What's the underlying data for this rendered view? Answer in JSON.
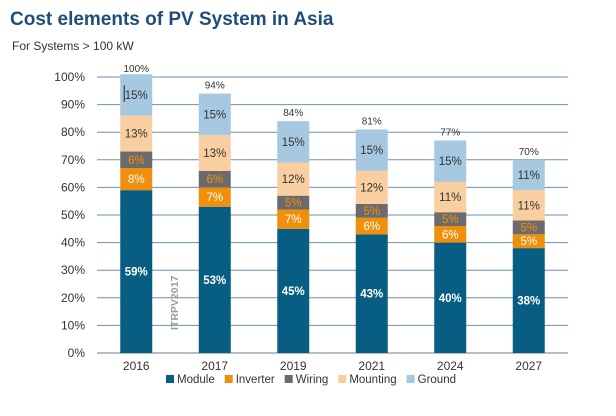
{
  "header": {
    "title": "Cost elements of PV System in Asia",
    "subtitle": "For Systems > 100 kW"
  },
  "watermark": "ITRPV2017",
  "colors": {
    "Module": "#075d82",
    "Inverter": "#f08f0c",
    "Wiring": "#6b6b6b",
    "Mounting": "#f9cfa1",
    "Ground": "#a6c8e0",
    "gridline": "#6a8fb3",
    "axis": "#7a7a7a"
  },
  "chart_data": {
    "type": "bar",
    "stacked": true,
    "title": "Cost elements of PV System in Asia",
    "subtitle": "For Systems > 100 kW",
    "xlabel": "",
    "ylabel": "",
    "ylim": [
      0,
      100
    ],
    "yticks": [
      0,
      10,
      20,
      30,
      40,
      50,
      60,
      70,
      80,
      90,
      100
    ],
    "ytick_labels": [
      "0%",
      "10%",
      "20%",
      "30%",
      "40%",
      "50%",
      "60%",
      "70%",
      "80%",
      "90%",
      "100%"
    ],
    "grid": true,
    "legend_position": "bottom",
    "categories": [
      "2016",
      "2017",
      "2019",
      "2021",
      "2024",
      "2027"
    ],
    "totals": [
      "100%",
      "94%",
      "84%",
      "81%",
      "77%",
      "70%"
    ],
    "total_values": [
      100,
      94,
      84,
      81,
      77,
      70
    ],
    "series": [
      {
        "name": "Module",
        "values": [
          59,
          53,
          45,
          43,
          40,
          38
        ],
        "labels": [
          "59%",
          "53%",
          "45%",
          "43%",
          "40%",
          "38%"
        ]
      },
      {
        "name": "Inverter",
        "values": [
          8,
          7,
          7,
          6,
          6,
          5
        ],
        "labels": [
          "8%",
          "7%",
          "7%",
          "6%",
          "6%",
          "5%"
        ]
      },
      {
        "name": "Wiring",
        "values": [
          6,
          6,
          5,
          5,
          5,
          5
        ],
        "labels": [
          "6%",
          "6%",
          "5%",
          "5%",
          "5%",
          "5%"
        ]
      },
      {
        "name": "Mounting",
        "values": [
          13,
          13,
          12,
          12,
          11,
          11
        ],
        "labels": [
          "13%",
          "13%",
          "12%",
          "12%",
          "11%",
          "11%"
        ]
      },
      {
        "name": "Ground",
        "values": [
          15,
          15,
          15,
          15,
          15,
          11
        ],
        "labels": [
          "15%",
          "15%",
          "15%",
          "15%",
          "15%",
          "11%"
        ]
      }
    ]
  }
}
